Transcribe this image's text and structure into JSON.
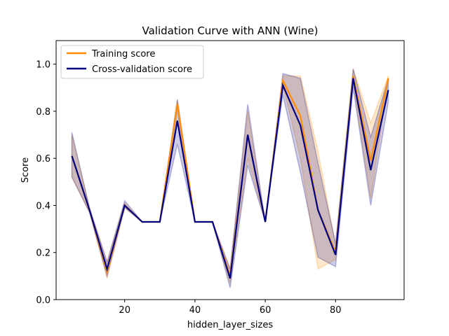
{
  "chart_data": {
    "type": "line",
    "title": "Validation Curve with ANN (Wine)",
    "xlabel": "hidden_layer_sizes",
    "ylabel": "Score",
    "xlim": [
      0.5,
      99.5
    ],
    "ylim": [
      0.0,
      1.1
    ],
    "xticks": [
      20,
      40,
      60,
      80
    ],
    "yticks": [
      0.0,
      0.2,
      0.4,
      0.6,
      0.8,
      1.0
    ],
    "x": [
      5,
      10,
      15,
      20,
      25,
      30,
      35,
      40,
      45,
      50,
      55,
      60,
      65,
      70,
      75,
      80,
      85,
      90,
      95
    ],
    "legend": "top-left",
    "series": [
      {
        "name": "Training score",
        "color": "#ff8c00",
        "values": [
          0.61,
          0.38,
          0.12,
          0.4,
          0.33,
          0.33,
          0.83,
          0.33,
          0.33,
          0.1,
          0.7,
          0.33,
          0.93,
          0.78,
          0.38,
          0.2,
          0.95,
          0.59,
          0.94
        ],
        "band_low": [
          0.52,
          0.37,
          0.09,
          0.39,
          0.33,
          0.33,
          0.8,
          0.33,
          0.33,
          0.07,
          0.6,
          0.33,
          0.91,
          0.6,
          0.13,
          0.17,
          0.92,
          0.43,
          0.93
        ],
        "band_high": [
          0.7,
          0.39,
          0.16,
          0.41,
          0.33,
          0.33,
          0.85,
          0.33,
          0.33,
          0.13,
          0.8,
          0.33,
          0.95,
          0.95,
          0.63,
          0.23,
          0.98,
          0.75,
          0.95
        ]
      },
      {
        "name": "Cross-validation score",
        "color": "#000080",
        "values": [
          0.61,
          0.38,
          0.13,
          0.4,
          0.33,
          0.33,
          0.76,
          0.33,
          0.33,
          0.09,
          0.7,
          0.33,
          0.91,
          0.74,
          0.38,
          0.19,
          0.94,
          0.55,
          0.89
        ],
        "band_low": [
          0.52,
          0.37,
          0.1,
          0.39,
          0.33,
          0.33,
          0.66,
          0.33,
          0.33,
          0.05,
          0.57,
          0.33,
          0.87,
          0.54,
          0.18,
          0.14,
          0.9,
          0.4,
          0.84
        ],
        "band_high": [
          0.71,
          0.39,
          0.16,
          0.42,
          0.33,
          0.33,
          0.85,
          0.33,
          0.33,
          0.13,
          0.83,
          0.33,
          0.96,
          0.94,
          0.58,
          0.24,
          0.98,
          0.69,
          0.94
        ]
      }
    ]
  }
}
